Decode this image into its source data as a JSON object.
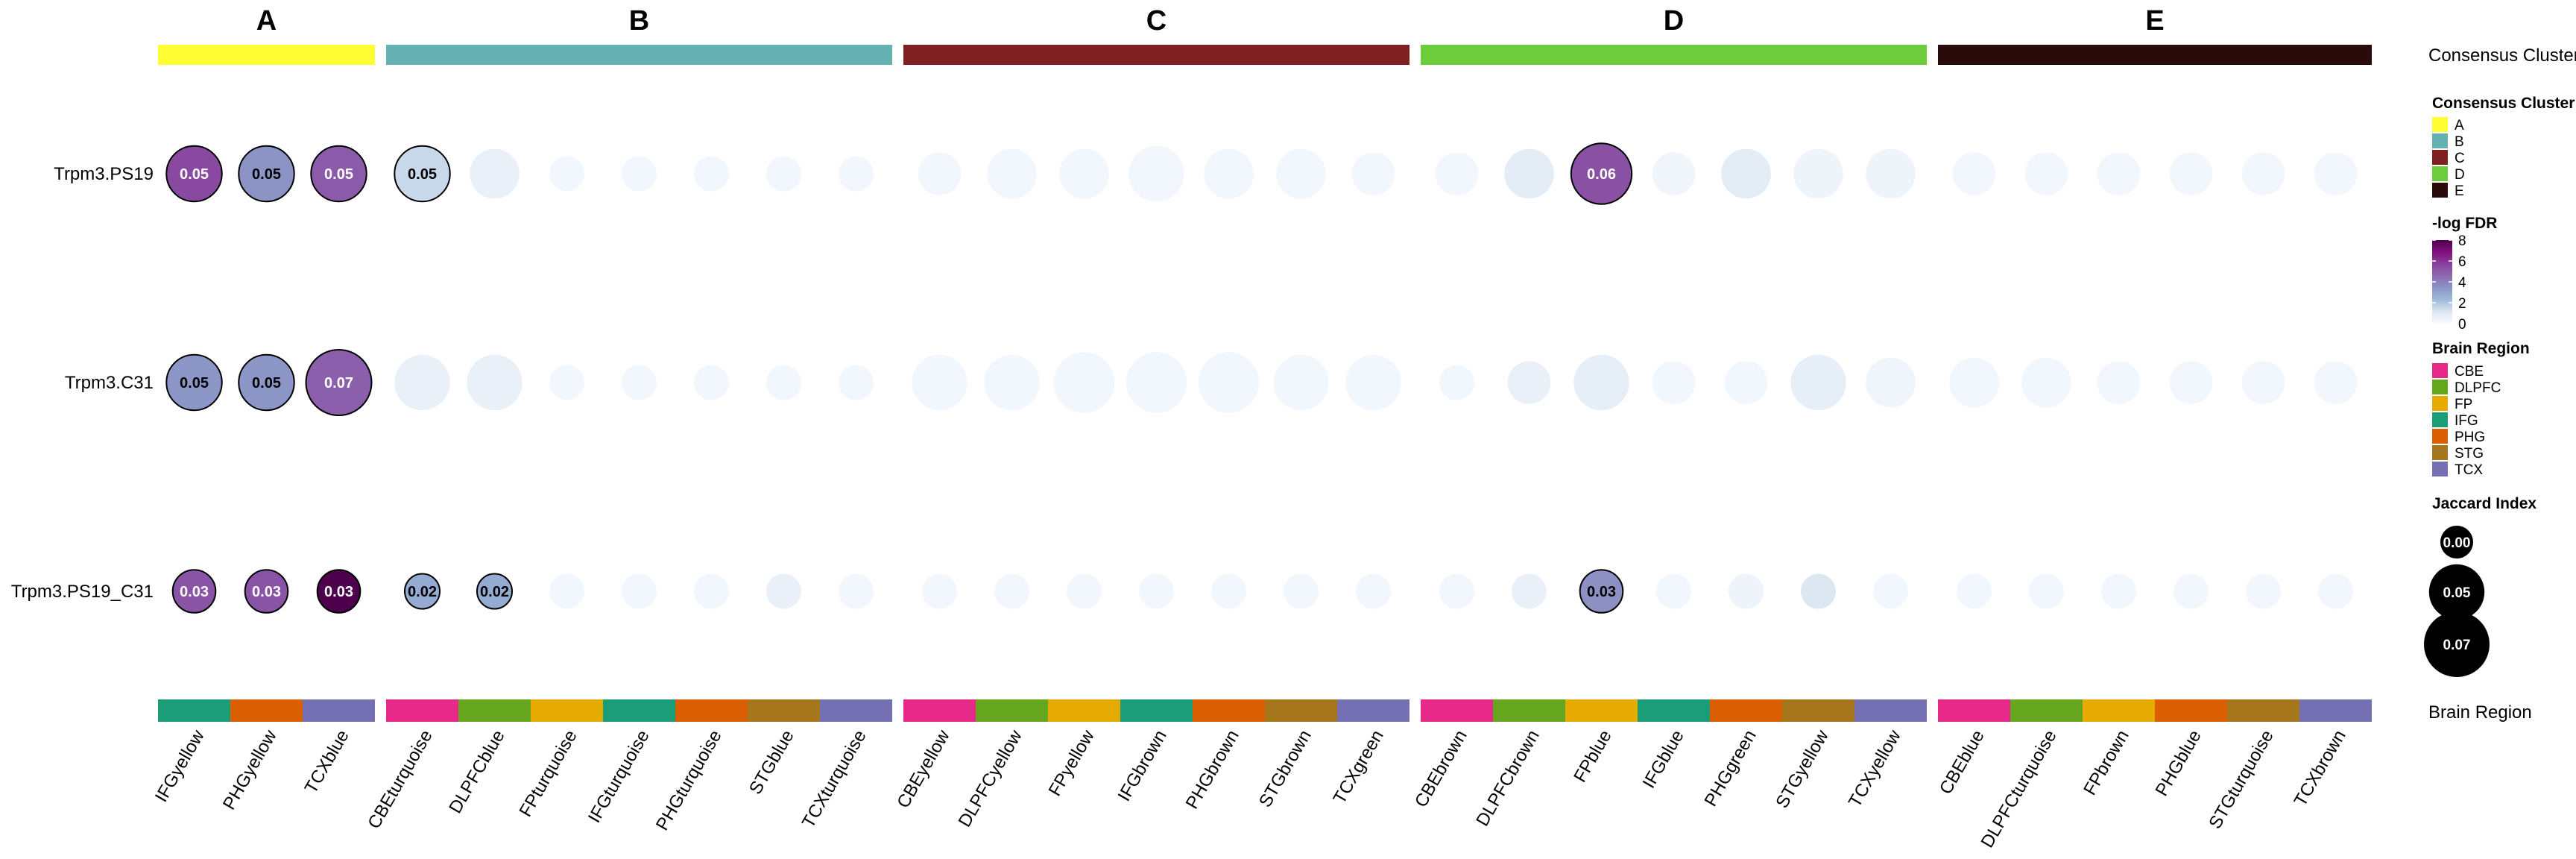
{
  "chart_data": {
    "type": "dot-heatmap",
    "rows": [
      "Trpm3.PS19",
      "Trpm3.C31",
      "Trpm3.PS19_C31"
    ],
    "clusters": [
      {
        "label": "A",
        "color": "#FFFF33",
        "modules": [
          "IFGyellow",
          "PHGyellow",
          "TCXblue"
        ],
        "regions": [
          "IFG",
          "PHG",
          "TCX"
        ]
      },
      {
        "label": "B",
        "color": "#66B2B2",
        "modules": [
          "CBEturquoise",
          "DLPFCblue",
          "FPturquoise",
          "IFGturquoise",
          "PHGturquoise",
          "STGblue",
          "TCXturquoise"
        ],
        "regions": [
          "CBE",
          "DLPFC",
          "FP",
          "IFG",
          "PHG",
          "STG",
          "TCX"
        ]
      },
      {
        "label": "C",
        "color": "#7F2020",
        "modules": [
          "CBEyellow",
          "DLPFCyellow",
          "FPyellow",
          "IFGbrown",
          "PHGbrown",
          "STGbrown",
          "TCXgreen"
        ],
        "regions": [
          "CBE",
          "DLPFC",
          "FP",
          "IFG",
          "PHG",
          "STG",
          "TCX"
        ]
      },
      {
        "label": "D",
        "color": "#6DCC3B",
        "modules": [
          "CBEbrown",
          "DLPFCbrown",
          "FPblue",
          "IFGblue",
          "PHGgreen",
          "STGyellow",
          "TCXyellow"
        ],
        "regions": [
          "CBE",
          "DLPFC",
          "FP",
          "IFG",
          "PHG",
          "STG",
          "TCX"
        ]
      },
      {
        "label": "E",
        "color": "#2A0A0A",
        "modules": [
          "CBEblue",
          "DLPFCturquoise",
          "FPbrown",
          "PHGblue",
          "STGturquoise",
          "TCXbrown"
        ],
        "regions": [
          "CBE",
          "DLPFC",
          "FP",
          "PHG",
          "STG",
          "TCX"
        ]
      }
    ],
    "jaccard": [
      [
        0.05,
        0.05,
        0.05,
        0.05,
        0.04,
        0.02,
        0.02,
        0.02,
        0.02,
        0.02,
        0.03,
        0.04,
        0.04,
        0.05,
        0.04,
        0.04,
        0.03,
        0.03,
        0.04,
        0.06,
        0.03,
        0.04,
        0.04,
        0.04,
        0.03,
        0.03,
        0.03,
        0.03,
        0.03,
        0.03
      ],
      [
        0.05,
        0.05,
        0.07,
        0.05,
        0.05,
        0.02,
        0.02,
        0.02,
        0.02,
        0.02,
        0.05,
        0.05,
        0.06,
        0.06,
        0.06,
        0.05,
        0.05,
        0.02,
        0.03,
        0.05,
        0.03,
        0.03,
        0.05,
        0.04,
        0.04,
        0.04,
        0.03,
        0.03,
        0.03,
        0.03
      ],
      [
        0.03,
        0.03,
        0.03,
        0.02,
        0.02,
        0.02,
        0.02,
        0.02,
        0.02,
        0.02,
        0.02,
        0.02,
        0.02,
        0.02,
        0.02,
        0.02,
        0.02,
        0.02,
        0.02,
        0.03,
        0.02,
        0.02,
        0.02,
        0.02,
        0.02,
        0.02,
        0.02,
        0.02,
        0.02,
        0.02
      ]
    ],
    "neglog_fdr": [
      [
        5.5,
        3.5,
        5.0,
        1.5,
        0.6,
        0.2,
        0.2,
        0.2,
        0.2,
        0.2,
        0.2,
        0.2,
        0.2,
        0.2,
        0.2,
        0.2,
        0.2,
        0.2,
        0.8,
        5.3,
        0.3,
        0.8,
        0.4,
        0.4,
        0.2,
        0.2,
        0.2,
        0.2,
        0.2,
        0.2
      ],
      [
        3.4,
        3.4,
        4.9,
        0.6,
        0.6,
        0.2,
        0.2,
        0.2,
        0.2,
        0.2,
        0.2,
        0.2,
        0.2,
        0.2,
        0.2,
        0.2,
        0.2,
        0.2,
        0.6,
        0.7,
        0.2,
        0.2,
        0.7,
        0.3,
        0.2,
        0.2,
        0.2,
        0.2,
        0.2,
        0.2
      ],
      [
        5.2,
        5.2,
        8.0,
        2.8,
        2.8,
        0.2,
        0.2,
        0.2,
        0.6,
        0.2,
        0.2,
        0.2,
        0.2,
        0.2,
        0.2,
        0.2,
        0.2,
        0.2,
        0.6,
        3.6,
        0.2,
        0.4,
        1.1,
        0.2,
        0.2,
        0.2,
        0.2,
        0.2,
        0.2,
        0.2
      ]
    ],
    "labeled": [
      [
        true,
        true,
        true,
        true,
        false,
        false,
        false,
        false,
        false,
        false,
        false,
        false,
        false,
        false,
        false,
        false,
        false,
        false,
        false,
        true,
        false,
        false,
        false,
        false,
        false,
        false,
        false,
        false,
        false,
        false
      ],
      [
        true,
        true,
        true,
        false,
        false,
        false,
        false,
        false,
        false,
        false,
        false,
        false,
        false,
        false,
        false,
        false,
        false,
        false,
        false,
        false,
        false,
        false,
        false,
        false,
        false,
        false,
        false,
        false,
        false,
        false
      ],
      [
        true,
        true,
        true,
        true,
        true,
        false,
        false,
        false,
        false,
        false,
        false,
        false,
        false,
        false,
        false,
        false,
        false,
        false,
        false,
        true,
        false,
        false,
        false,
        false,
        false,
        false,
        false,
        false,
        false,
        false
      ]
    ],
    "region_colors": {
      "CBE": "#E7298A",
      "DLPFC": "#66A61E",
      "FP": "#E6AB02",
      "IFG": "#1B9E77",
      "PHG": "#D95F02",
      "STG": "#A6761D",
      "TCX": "#7570B3"
    },
    "annotation_labels": {
      "top": "Consensus Cluster",
      "bottom": "Brain Region"
    },
    "legend": {
      "cluster_title": "Consensus Cluster",
      "fdr_title": "-log FDR",
      "fdr_ticks": [
        0,
        2,
        4,
        6,
        8
      ],
      "fdr_range": [
        0,
        8
      ],
      "fdr_colors": [
        "#F7FBFF",
        "#DCE6F2",
        "#9EBCDA",
        "#8C96C6",
        "#8C6BB1",
        "#88419D",
        "#810F7C",
        "#4D004B"
      ],
      "region_title": "Brain Region",
      "jaccard_title": "Jaccard Index",
      "jaccard_values": [
        0.0,
        0.05,
        0.07
      ],
      "jaccard_labels": [
        "0.00",
        "0.05",
        "0.07"
      ],
      "jaccard_range": [
        0,
        0.07
      ]
    }
  }
}
